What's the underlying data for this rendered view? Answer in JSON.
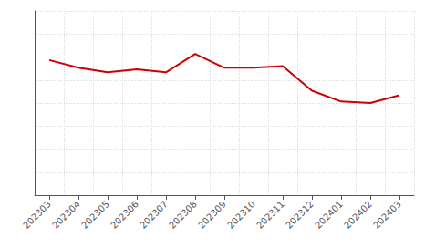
{
  "chart_data": {
    "type": "line",
    "categories": [
      "202303",
      "202304",
      "202305",
      "202306",
      "202307",
      "202308",
      "202309",
      "202310",
      "202311",
      "202312",
      "202401",
      "202402",
      "202403"
    ],
    "values": [
      88,
      83,
      80,
      82,
      80,
      92,
      83,
      83,
      84,
      68,
      61,
      60,
      65
    ],
    "color": "#cc0000",
    "ylim": [
      0,
      120
    ],
    "yticks": [
      0,
      15,
      30,
      45,
      60,
      75,
      90,
      105,
      120
    ],
    "grid": true,
    "tick_labels": "x"
  }
}
